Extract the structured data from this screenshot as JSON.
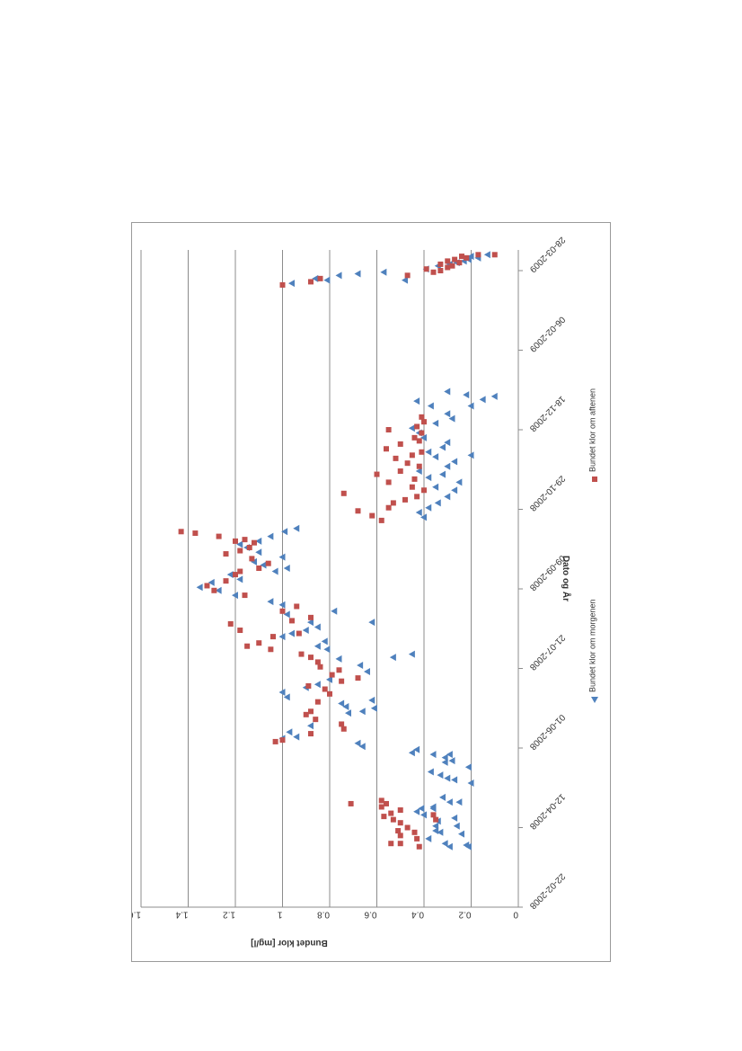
{
  "chart_data": {
    "type": "scatter",
    "title": "",
    "xlabel": "Dato og År",
    "ylabel": "Bundet klor [mg/l]",
    "ylim": [
      0,
      1.6
    ],
    "yticks": [
      "0",
      "0.2",
      "0.4",
      "0.6",
      "0.8",
      "1",
      "1.2",
      "1.4",
      "1.6"
    ],
    "xlim": [
      "2008-02-22",
      "2009-04-10"
    ],
    "xticks": [
      "22-02-2008",
      "12-04-2008",
      "01-06-2008",
      "21-07-2008",
      "09-09-2008",
      "29-10-2008",
      "18-12-2008",
      "06-02-2009",
      "28-03-2009"
    ],
    "grid": true,
    "orientation": "rotated-90-clockwise",
    "legend_position": "bottom",
    "series": [
      {
        "name": "Bundet klor om morgenen",
        "color": "#4f81bd",
        "marker": "triangle",
        "points": [
          [
            "2008-03-31",
            0.21
          ],
          [
            "2008-04-01",
            0.22
          ],
          [
            "2008-03-31",
            0.29
          ],
          [
            "2008-04-02",
            0.31
          ],
          [
            "2008-04-05",
            0.38
          ],
          [
            "2008-04-08",
            0.24
          ],
          [
            "2008-04-09",
            0.33
          ],
          [
            "2008-04-10",
            0.35
          ],
          [
            "2008-04-13",
            0.26
          ],
          [
            "2008-04-13",
            0.35
          ],
          [
            "2008-04-16",
            0.34
          ],
          [
            "2008-04-18",
            0.27
          ],
          [
            "2008-04-20",
            0.4
          ],
          [
            "2008-04-22",
            0.43
          ],
          [
            "2008-04-24",
            0.36
          ],
          [
            "2008-04-24",
            0.41
          ],
          [
            "2008-04-28",
            0.29
          ],
          [
            "2008-05-01",
            0.32
          ],
          [
            "2008-04-28",
            0.25
          ],
          [
            "2008-04-25",
            0.36
          ],
          [
            "2008-05-10",
            0.2
          ],
          [
            "2008-05-12",
            0.27
          ],
          [
            "2008-05-13",
            0.3
          ],
          [
            "2008-05-15",
            0.33
          ],
          [
            "2008-05-17",
            0.37
          ],
          [
            "2008-05-20",
            0.21
          ],
          [
            "2008-05-23",
            0.31
          ],
          [
            "2008-05-24",
            0.28
          ],
          [
            "2008-05-26",
            0.31
          ],
          [
            "2008-05-28",
            0.29
          ],
          [
            "2008-05-28",
            0.36
          ],
          [
            "2008-05-29",
            0.45
          ],
          [
            "2008-05-31",
            0.43
          ],
          [
            "2008-06-02",
            0.66
          ],
          [
            "2008-06-04",
            0.68
          ],
          [
            "2008-06-07",
            1.0
          ],
          [
            "2008-06-08",
            0.94
          ],
          [
            "2008-06-11",
            0.97
          ],
          [
            "2008-06-15",
            0.88
          ],
          [
            "2008-06-23",
            0.72
          ],
          [
            "2008-06-24",
            0.66
          ],
          [
            "2008-06-26",
            0.61
          ],
          [
            "2008-06-27",
            0.73
          ],
          [
            "2008-06-29",
            0.75
          ],
          [
            "2008-07-01",
            0.62
          ],
          [
            "2008-07-03",
            0.98
          ],
          [
            "2008-07-06",
            1.0
          ],
          [
            "2008-07-09",
            0.9
          ],
          [
            "2008-07-11",
            0.85
          ],
          [
            "2008-07-14",
            0.8
          ],
          [
            "2008-07-19",
            0.64
          ],
          [
            "2008-07-23",
            0.67
          ],
          [
            "2008-07-28",
            0.53
          ],
          [
            "2008-07-30",
            0.45
          ],
          [
            "2008-07-27",
            0.76
          ],
          [
            "2008-08-02",
            0.81
          ],
          [
            "2008-08-04",
            0.85
          ],
          [
            "2008-08-07",
            0.82
          ],
          [
            "2008-08-10",
            1.0
          ],
          [
            "2008-08-12",
            0.96
          ],
          [
            "2008-08-14",
            0.9
          ],
          [
            "2008-08-16",
            0.85
          ],
          [
            "2008-08-19",
            0.88
          ],
          [
            "2008-08-19",
            0.62
          ],
          [
            "2008-08-24",
            0.98
          ],
          [
            "2008-08-26",
            0.78
          ],
          [
            "2008-08-30",
            1.0
          ],
          [
            "2008-09-01",
            1.05
          ],
          [
            "2008-09-05",
            1.2
          ],
          [
            "2008-09-08",
            1.27
          ],
          [
            "2008-09-10",
            1.35
          ],
          [
            "2008-09-13",
            1.3
          ],
          [
            "2008-09-15",
            1.18
          ],
          [
            "2008-09-18",
            1.22
          ],
          [
            "2008-09-20",
            1.03
          ],
          [
            "2008-09-22",
            0.98
          ],
          [
            "2008-09-24",
            1.08
          ],
          [
            "2008-09-26",
            1.12
          ],
          [
            "2008-09-29",
            1.0
          ],
          [
            "2008-10-02",
            1.1
          ],
          [
            "2008-10-05",
            1.15
          ],
          [
            "2008-10-07",
            1.18
          ],
          [
            "2008-10-09",
            1.1
          ],
          [
            "2008-10-12",
            1.05
          ],
          [
            "2008-10-15",
            0.99
          ],
          [
            "2008-10-17",
            0.94
          ],
          [
            "2008-10-24",
            0.4
          ],
          [
            "2008-10-27",
            0.42
          ],
          [
            "2008-10-30",
            0.38
          ],
          [
            "2008-11-02",
            0.34
          ],
          [
            "2008-11-06",
            0.3
          ],
          [
            "2008-11-10",
            0.27
          ],
          [
            "2008-11-12",
            0.35
          ],
          [
            "2008-11-15",
            0.25
          ],
          [
            "2008-11-18",
            0.38
          ],
          [
            "2008-11-22",
            0.42
          ],
          [
            "2008-11-25",
            0.3
          ],
          [
            "2008-11-28",
            0.27
          ],
          [
            "2008-12-01",
            0.35
          ],
          [
            "2008-12-04",
            0.38
          ],
          [
            "2008-12-07",
            0.32
          ],
          [
            "2008-12-10",
            0.3
          ],
          [
            "2008-12-13",
            0.4
          ],
          [
            "2008-12-16",
            0.42
          ],
          [
            "2008-12-19",
            0.45
          ],
          [
            "2008-12-22",
            0.35
          ],
          [
            "2008-12-25",
            0.28
          ],
          [
            "2008-12-28",
            0.3
          ],
          [
            "2009-01-02",
            0.37
          ],
          [
            "2009-01-05",
            0.43
          ],
          [
            "2008-12-02",
            0.2
          ],
          [
            "2008-11-20",
            0.32
          ],
          [
            "2009-01-02",
            0.2
          ],
          [
            "2009-01-06",
            0.15
          ],
          [
            "2009-01-08",
            0.1
          ],
          [
            "2009-01-09",
            0.22
          ],
          [
            "2009-01-11",
            0.3
          ],
          [
            "2009-03-20",
            0.96
          ],
          [
            "2009-03-22",
            0.81
          ],
          [
            "2009-03-23",
            0.86
          ],
          [
            "2009-03-25",
            0.76
          ],
          [
            "2009-03-26",
            0.68
          ],
          [
            "2009-03-27",
            0.57
          ],
          [
            "2009-03-22",
            0.48
          ],
          [
            "2009-03-29",
            0.39
          ],
          [
            "2009-03-31",
            0.34
          ],
          [
            "2009-04-01",
            0.29
          ],
          [
            "2009-04-02",
            0.26
          ],
          [
            "2009-04-03",
            0.23
          ],
          [
            "2009-04-04",
            0.21
          ],
          [
            "2009-04-05",
            0.17
          ],
          [
            "2009-04-06",
            0.2
          ],
          [
            "2009-04-07",
            0.13
          ]
        ]
      },
      {
        "name": "Bundet klor om aftenen",
        "color": "#c0504d",
        "marker": "square",
        "points": [
          [
            "2008-03-31",
            0.42
          ],
          [
            "2008-04-02",
            0.5
          ],
          [
            "2008-04-02",
            0.54
          ],
          [
            "2008-04-05",
            0.43
          ],
          [
            "2008-04-07",
            0.5
          ],
          [
            "2008-04-09",
            0.44
          ],
          [
            "2008-04-10",
            0.51
          ],
          [
            "2008-04-12",
            0.47
          ],
          [
            "2008-04-15",
            0.5
          ],
          [
            "2008-04-17",
            0.53
          ],
          [
            "2008-04-19",
            0.57
          ],
          [
            "2008-04-21",
            0.54
          ],
          [
            "2008-04-23",
            0.5
          ],
          [
            "2008-04-25",
            0.58
          ],
          [
            "2008-04-27",
            0.56
          ],
          [
            "2008-04-27",
            0.71
          ],
          [
            "2008-04-29",
            0.58
          ],
          [
            "2008-04-20",
            0.36
          ],
          [
            "2008-04-17",
            0.35
          ],
          [
            "2008-06-05",
            1.03
          ],
          [
            "2008-06-06",
            1.0
          ],
          [
            "2008-06-10",
            0.88
          ],
          [
            "2008-06-13",
            0.74
          ],
          [
            "2008-06-16",
            0.75
          ],
          [
            "2008-06-19",
            0.86
          ],
          [
            "2008-06-22",
            0.9
          ],
          [
            "2008-06-24",
            0.88
          ],
          [
            "2008-06-30",
            0.85
          ],
          [
            "2008-07-05",
            0.8
          ],
          [
            "2008-07-08",
            0.82
          ],
          [
            "2008-07-10",
            0.89
          ],
          [
            "2008-07-13",
            0.75
          ],
          [
            "2008-07-15",
            0.68
          ],
          [
            "2008-07-17",
            0.79
          ],
          [
            "2008-07-20",
            0.76
          ],
          [
            "2008-07-22",
            0.84
          ],
          [
            "2008-07-25",
            0.85
          ],
          [
            "2008-07-28",
            0.88
          ],
          [
            "2008-07-30",
            0.92
          ],
          [
            "2008-08-02",
            1.05
          ],
          [
            "2008-08-04",
            1.15
          ],
          [
            "2008-08-06",
            1.1
          ],
          [
            "2008-08-10",
            1.04
          ],
          [
            "2008-08-12",
            0.93
          ],
          [
            "2008-08-14",
            1.18
          ],
          [
            "2008-08-18",
            1.22
          ],
          [
            "2008-08-20",
            0.96
          ],
          [
            "2008-08-22",
            0.88
          ],
          [
            "2008-08-26",
            1.0
          ],
          [
            "2008-08-29",
            0.94
          ],
          [
            "2008-09-05",
            1.16
          ],
          [
            "2008-09-08",
            1.29
          ],
          [
            "2008-09-11",
            1.32
          ],
          [
            "2008-09-14",
            1.24
          ],
          [
            "2008-09-18",
            1.2
          ],
          [
            "2008-09-20",
            1.18
          ],
          [
            "2008-09-22",
            1.1
          ],
          [
            "2008-09-25",
            1.06
          ],
          [
            "2008-09-28",
            1.13
          ],
          [
            "2008-10-01",
            1.24
          ],
          [
            "2008-10-03",
            1.18
          ],
          [
            "2008-10-05",
            1.14
          ],
          [
            "2008-10-08",
            1.12
          ],
          [
            "2008-10-10",
            1.16
          ],
          [
            "2008-10-12",
            1.27
          ],
          [
            "2008-10-14",
            1.37
          ],
          [
            "2008-10-15",
            1.43
          ],
          [
            "2008-10-09",
            1.2
          ],
          [
            "2008-10-22",
            0.58
          ],
          [
            "2008-10-25",
            0.62
          ],
          [
            "2008-10-28",
            0.68
          ],
          [
            "2008-10-30",
            0.55
          ],
          [
            "2008-11-02",
            0.53
          ],
          [
            "2008-11-04",
            0.48
          ],
          [
            "2008-11-06",
            0.43
          ],
          [
            "2008-11-08",
            0.74
          ],
          [
            "2008-11-10",
            0.4
          ],
          [
            "2008-11-12",
            0.45
          ],
          [
            "2008-11-15",
            0.55
          ],
          [
            "2008-11-17",
            0.44
          ],
          [
            "2008-11-20",
            0.6
          ],
          [
            "2008-11-22",
            0.5
          ],
          [
            "2008-11-25",
            0.42
          ],
          [
            "2008-11-27",
            0.47
          ],
          [
            "2008-11-30",
            0.52
          ],
          [
            "2008-12-02",
            0.45
          ],
          [
            "2008-12-04",
            0.41
          ],
          [
            "2008-12-06",
            0.56
          ],
          [
            "2008-12-09",
            0.5
          ],
          [
            "2008-12-11",
            0.42
          ],
          [
            "2008-12-13",
            0.44
          ],
          [
            "2008-12-16",
            0.41
          ],
          [
            "2008-12-18",
            0.55
          ],
          [
            "2008-12-20",
            0.43
          ],
          [
            "2008-12-23",
            0.4
          ],
          [
            "2008-12-26",
            0.41
          ],
          [
            "2009-03-19",
            1.0
          ],
          [
            "2009-03-21",
            0.88
          ],
          [
            "2009-03-23",
            0.84
          ],
          [
            "2009-03-25",
            0.47
          ],
          [
            "2009-03-27",
            0.36
          ],
          [
            "2009-03-28",
            0.33
          ],
          [
            "2009-03-29",
            0.39
          ],
          [
            "2009-03-30",
            0.3
          ],
          [
            "2009-03-31",
            0.28
          ],
          [
            "2009-04-01",
            0.33
          ],
          [
            "2009-04-02",
            0.25
          ],
          [
            "2009-04-03",
            0.3
          ],
          [
            "2009-04-04",
            0.27
          ],
          [
            "2009-04-05",
            0.22
          ],
          [
            "2009-04-06",
            0.24
          ],
          [
            "2009-04-07",
            0.1
          ],
          [
            "2009-04-07",
            0.17
          ]
        ]
      }
    ]
  }
}
